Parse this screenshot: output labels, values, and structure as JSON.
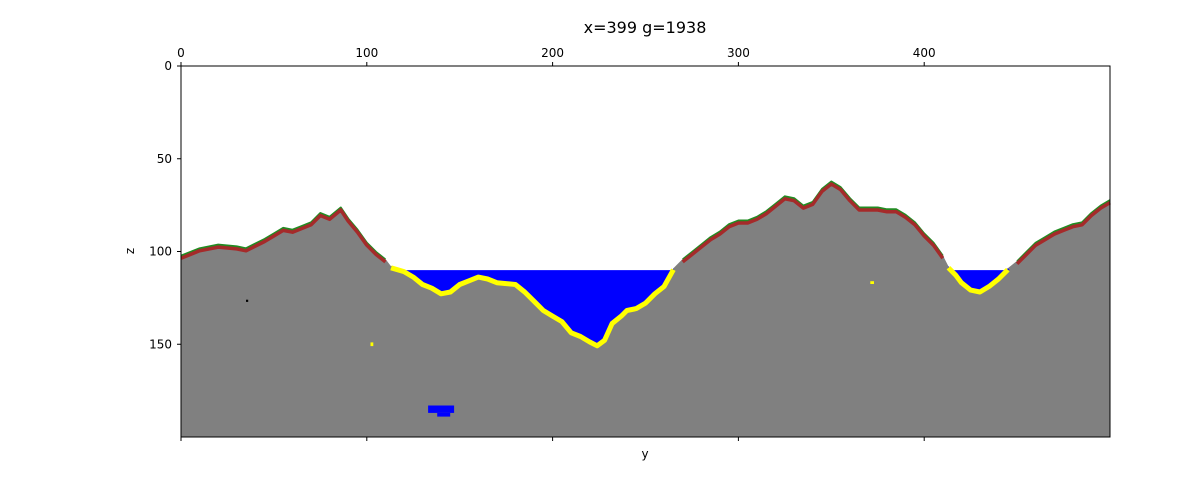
{
  "chart_data": {
    "type": "heatmap",
    "title": "x=399 g=1938",
    "xlabel": "y",
    "ylabel": "z",
    "xlim": [
      0,
      500
    ],
    "ylim": [
      200,
      0
    ],
    "top_ticks": [
      0,
      100,
      200,
      300,
      400
    ],
    "left_ticks": [
      0,
      50,
      100,
      150
    ],
    "grid": false,
    "colors": {
      "air": "#ffffff",
      "stone": "#808080",
      "dirt": "#a52a2a",
      "grass": "#228b22",
      "sand": "#ffff00",
      "water": "#0000ff",
      "coal": "#000000"
    },
    "water_level_z": 110,
    "terrain_surface": [
      {
        "y": 0,
        "z": 102
      },
      {
        "y": 10,
        "z": 98
      },
      {
        "y": 20,
        "z": 96
      },
      {
        "y": 30,
        "z": 97
      },
      {
        "y": 35,
        "z": 98
      },
      {
        "y": 45,
        "z": 93
      },
      {
        "y": 50,
        "z": 90
      },
      {
        "y": 55,
        "z": 87
      },
      {
        "y": 60,
        "z": 88
      },
      {
        "y": 65,
        "z": 86
      },
      {
        "y": 70,
        "z": 84
      },
      {
        "y": 75,
        "z": 79
      },
      {
        "y": 80,
        "z": 81
      },
      {
        "y": 86,
        "z": 76
      },
      {
        "y": 90,
        "z": 82
      },
      {
        "y": 95,
        "z": 88
      },
      {
        "y": 100,
        "z": 95
      },
      {
        "y": 105,
        "z": 100
      },
      {
        "y": 110,
        "z": 104
      },
      {
        "y": 113,
        "z": 108
      },
      {
        "y": 120,
        "z": 110
      },
      {
        "y": 125,
        "z": 113
      },
      {
        "y": 130,
        "z": 117
      },
      {
        "y": 135,
        "z": 119
      },
      {
        "y": 140,
        "z": 122
      },
      {
        "y": 145,
        "z": 121
      },
      {
        "y": 150,
        "z": 117
      },
      {
        "y": 155,
        "z": 115
      },
      {
        "y": 160,
        "z": 113
      },
      {
        "y": 165,
        "z": 114
      },
      {
        "y": 170,
        "z": 116
      },
      {
        "y": 180,
        "z": 117
      },
      {
        "y": 185,
        "z": 121
      },
      {
        "y": 190,
        "z": 126
      },
      {
        "y": 195,
        "z": 131
      },
      {
        "y": 200,
        "z": 134
      },
      {
        "y": 205,
        "z": 137
      },
      {
        "y": 210,
        "z": 143
      },
      {
        "y": 215,
        "z": 145
      },
      {
        "y": 220,
        "z": 148
      },
      {
        "y": 224,
        "z": 150
      },
      {
        "y": 228,
        "z": 147
      },
      {
        "y": 232,
        "z": 138
      },
      {
        "y": 237,
        "z": 134
      },
      {
        "y": 240,
        "z": 131
      },
      {
        "y": 245,
        "z": 130
      },
      {
        "y": 250,
        "z": 127
      },
      {
        "y": 255,
        "z": 122
      },
      {
        "y": 260,
        "z": 118
      },
      {
        "y": 265,
        "z": 109
      },
      {
        "y": 270,
        "z": 104
      },
      {
        "y": 275,
        "z": 100
      },
      {
        "y": 280,
        "z": 96
      },
      {
        "y": 285,
        "z": 92
      },
      {
        "y": 290,
        "z": 89
      },
      {
        "y": 295,
        "z": 85
      },
      {
        "y": 300,
        "z": 83
      },
      {
        "y": 305,
        "z": 83
      },
      {
        "y": 310,
        "z": 81
      },
      {
        "y": 315,
        "z": 78
      },
      {
        "y": 320,
        "z": 74
      },
      {
        "y": 325,
        "z": 70
      },
      {
        "y": 330,
        "z": 71
      },
      {
        "y": 335,
        "z": 75
      },
      {
        "y": 340,
        "z": 73
      },
      {
        "y": 345,
        "z": 66
      },
      {
        "y": 350,
        "z": 62
      },
      {
        "y": 355,
        "z": 65
      },
      {
        "y": 360,
        "z": 71
      },
      {
        "y": 365,
        "z": 76
      },
      {
        "y": 370,
        "z": 76
      },
      {
        "y": 375,
        "z": 76
      },
      {
        "y": 380,
        "z": 77
      },
      {
        "y": 385,
        "z": 77
      },
      {
        "y": 390,
        "z": 80
      },
      {
        "y": 395,
        "z": 84
      },
      {
        "y": 400,
        "z": 90
      },
      {
        "y": 405,
        "z": 95
      },
      {
        "y": 410,
        "z": 102
      },
      {
        "y": 413,
        "z": 108
      },
      {
        "y": 417,
        "z": 112
      },
      {
        "y": 420,
        "z": 116
      },
      {
        "y": 425,
        "z": 120
      },
      {
        "y": 430,
        "z": 121
      },
      {
        "y": 435,
        "z": 118
      },
      {
        "y": 440,
        "z": 114
      },
      {
        "y": 445,
        "z": 109
      },
      {
        "y": 450,
        "z": 105
      },
      {
        "y": 455,
        "z": 100
      },
      {
        "y": 460,
        "z": 95
      },
      {
        "y": 465,
        "z": 92
      },
      {
        "y": 470,
        "z": 89
      },
      {
        "y": 475,
        "z": 87
      },
      {
        "y": 480,
        "z": 85
      },
      {
        "y": 485,
        "z": 84
      },
      {
        "y": 490,
        "z": 79
      },
      {
        "y": 495,
        "z": 75
      },
      {
        "y": 500,
        "z": 72
      }
    ],
    "lakes": [
      {
        "y_start": 113,
        "y_end": 265,
        "surface_z": 110
      },
      {
        "y_start": 413,
        "y_end": 446,
        "surface_z": 110
      }
    ],
    "features": [
      {
        "type": "water",
        "y": 133,
        "z": 183,
        "w": 14,
        "h": 4
      },
      {
        "type": "sand",
        "y": 102,
        "z": 149,
        "w": 1.5,
        "h": 2
      },
      {
        "type": "sand",
        "y": 371,
        "z": 116,
        "w": 2,
        "h": 1.5
      },
      {
        "type": "coal",
        "y": 35,
        "z": 126,
        "w": 1.2,
        "h": 1.2
      }
    ]
  }
}
